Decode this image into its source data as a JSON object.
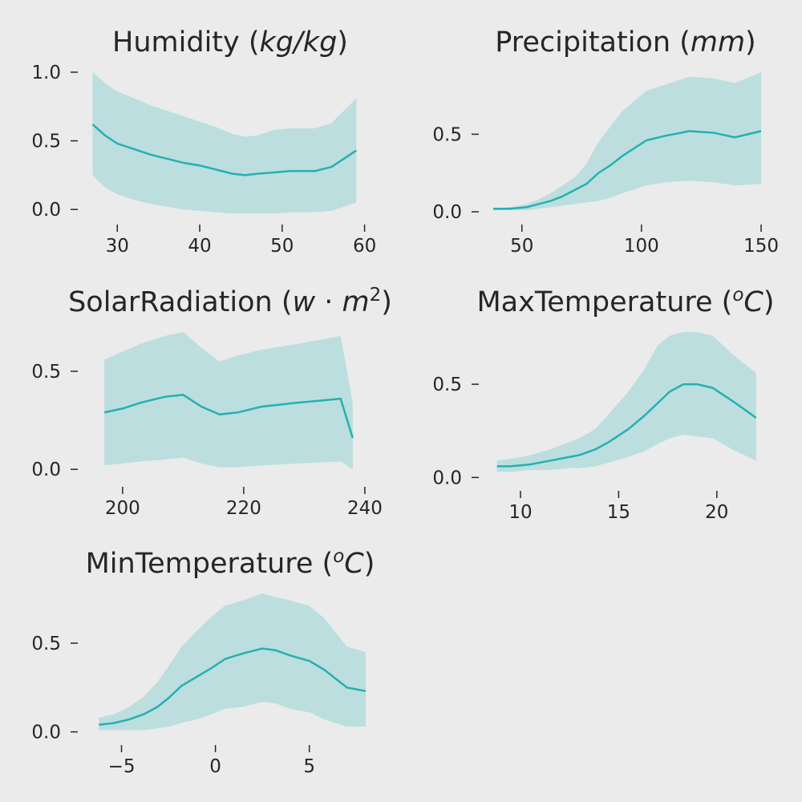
{
  "figure": {
    "background": "#ebebeb",
    "line_color": "#26b0b0",
    "band_color": "#bcdedf"
  },
  "chart_data": [
    {
      "type": "line",
      "title": {
        "base": "Humidity",
        "unit_html": "(<tspan class='it'>kg/kg</tspan>)"
      },
      "xlim": [
        25.5,
        61.5
      ],
      "ylim": [
        -0.04,
        1.0
      ],
      "xticks": [
        30,
        40,
        50,
        60
      ],
      "yticks": [
        0.0,
        0.5,
        1.0
      ],
      "x": [
        27,
        28.5,
        30,
        32,
        34,
        36,
        38,
        40,
        42,
        44,
        45.5,
        47,
        49,
        51,
        54,
        56,
        59
      ],
      "y": [
        0.62,
        0.54,
        0.48,
        0.44,
        0.4,
        0.37,
        0.34,
        0.32,
        0.29,
        0.26,
        0.25,
        0.26,
        0.27,
        0.28,
        0.28,
        0.31,
        0.43
      ],
      "upper": [
        1.0,
        0.92,
        0.86,
        0.81,
        0.76,
        0.72,
        0.68,
        0.64,
        0.6,
        0.55,
        0.53,
        0.54,
        0.58,
        0.59,
        0.59,
        0.63,
        0.81
      ],
      "lower": [
        0.25,
        0.16,
        0.11,
        0.07,
        0.04,
        0.02,
        0.0,
        -0.01,
        -0.02,
        -0.03,
        -0.03,
        -0.03,
        -0.03,
        -0.02,
        -0.02,
        -0.01,
        0.05
      ]
    },
    {
      "type": "line",
      "title": {
        "base": "Precipitation",
        "unit_html": "(<tspan class='it'>mm</tspan>)"
      },
      "xlim": [
        33,
        152
      ],
      "ylim": [
        -0.02,
        0.9
      ],
      "xticks": [
        50,
        100,
        150
      ],
      "yticks": [
        0.0,
        0.5
      ],
      "x": [
        38,
        45,
        52,
        57,
        62,
        67,
        72,
        77,
        82,
        87,
        92,
        102,
        110,
        120,
        130,
        139,
        150
      ],
      "y": [
        0.02,
        0.02,
        0.03,
        0.05,
        0.07,
        0.1,
        0.14,
        0.18,
        0.25,
        0.3,
        0.36,
        0.46,
        0.49,
        0.52,
        0.51,
        0.48,
        0.52
      ],
      "upper": [
        0.02,
        0.03,
        0.05,
        0.08,
        0.12,
        0.17,
        0.22,
        0.31,
        0.45,
        0.55,
        0.65,
        0.78,
        0.82,
        0.87,
        0.86,
        0.83,
        0.9
      ],
      "lower": [
        0.01,
        0.01,
        0.01,
        0.02,
        0.03,
        0.04,
        0.05,
        0.06,
        0.07,
        0.09,
        0.12,
        0.17,
        0.19,
        0.2,
        0.19,
        0.17,
        0.18
      ]
    },
    {
      "type": "line",
      "title": {
        "base": "SolarRadiation",
        "unit_html": "(<tspan class='it'>w</tspan> · <tspan class='it'>m</tspan><tspan dy='-13' font-size='23'>2</tspan><tspan dy='13'>)</tspan>"
      },
      "xlim": [
        193,
        242
      ],
      "ylim": [
        -0.04,
        0.7
      ],
      "xticks": [
        200,
        220,
        240
      ],
      "yticks": [
        0.0,
        0.5
      ],
      "x": [
        197,
        200,
        203,
        207,
        210,
        213,
        216,
        219,
        223,
        229,
        236,
        238
      ],
      "y": [
        0.29,
        0.31,
        0.34,
        0.37,
        0.38,
        0.32,
        0.28,
        0.29,
        0.32,
        0.34,
        0.36,
        0.16
      ],
      "upper": [
        0.56,
        0.6,
        0.64,
        0.68,
        0.7,
        0.62,
        0.55,
        0.58,
        0.61,
        0.64,
        0.68,
        0.34
      ],
      "lower": [
        0.02,
        0.03,
        0.04,
        0.05,
        0.06,
        0.03,
        0.01,
        0.01,
        0.02,
        0.03,
        0.04,
        0.0
      ]
    },
    {
      "type": "line",
      "title": {
        "base": "MaxTemperature",
        "unit_html": "(<tspan class='it' dy='-13' font-size='23'>o</tspan><tspan class='it' dy='13'>C</tspan>)"
      },
      "xlim": [
        8.0,
        22.5
      ],
      "ylim": [
        -0.02,
        0.78
      ],
      "xticks": [
        10,
        15,
        20
      ],
      "yticks": [
        0.0,
        0.5
      ],
      "x": [
        8.8,
        9.5,
        10.5,
        11.5,
        12.5,
        13,
        13.8,
        14.5,
        15.5,
        16.3,
        17,
        17.6,
        18.3,
        19,
        19.8,
        20.8,
        22.0
      ],
      "y": [
        0.06,
        0.06,
        0.07,
        0.09,
        0.11,
        0.12,
        0.15,
        0.19,
        0.26,
        0.33,
        0.4,
        0.46,
        0.5,
        0.5,
        0.48,
        0.41,
        0.32
      ],
      "upper": [
        0.09,
        0.1,
        0.12,
        0.15,
        0.19,
        0.21,
        0.26,
        0.34,
        0.46,
        0.58,
        0.71,
        0.76,
        0.78,
        0.78,
        0.76,
        0.66,
        0.56
      ],
      "lower": [
        0.03,
        0.03,
        0.04,
        0.04,
        0.05,
        0.05,
        0.06,
        0.08,
        0.11,
        0.14,
        0.18,
        0.21,
        0.23,
        0.22,
        0.21,
        0.15,
        0.09
      ]
    },
    {
      "type": "line",
      "title": {
        "base": "MinTemperature",
        "unit_html": "(<tspan class='it' dy='-13' font-size='23'>o</tspan><tspan class='it' dy='13'>C</tspan>)"
      },
      "xlim": [
        -7.2,
        8.6
      ],
      "ylim": [
        -0.02,
        0.78
      ],
      "xticks": [
        -5,
        0,
        5
      ],
      "yticks": [
        0.0,
        0.5
      ],
      "xtick_labels": [
        "−5",
        "0",
        "5"
      ],
      "x": [
        -6.2,
        -5.4,
        -4.6,
        -3.8,
        -3.1,
        -2.5,
        -1.8,
        -1.0,
        -0.2,
        0.5,
        1.4,
        2.5,
        3.2,
        4.0,
        5.0,
        5.8,
        7.0,
        8.0
      ],
      "y": [
        0.04,
        0.05,
        0.07,
        0.1,
        0.14,
        0.19,
        0.26,
        0.31,
        0.36,
        0.41,
        0.44,
        0.47,
        0.46,
        0.43,
        0.4,
        0.35,
        0.25,
        0.23
      ],
      "upper": [
        0.08,
        0.1,
        0.14,
        0.2,
        0.28,
        0.37,
        0.48,
        0.57,
        0.65,
        0.71,
        0.74,
        0.78,
        0.76,
        0.74,
        0.71,
        0.64,
        0.48,
        0.45
      ],
      "lower": [
        0.01,
        0.01,
        0.01,
        0.01,
        0.02,
        0.03,
        0.05,
        0.07,
        0.1,
        0.13,
        0.14,
        0.17,
        0.16,
        0.13,
        0.11,
        0.07,
        0.03,
        0.03
      ]
    }
  ]
}
